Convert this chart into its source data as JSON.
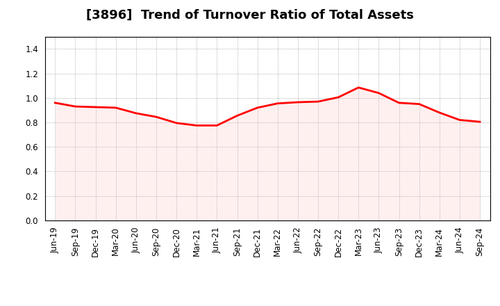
{
  "title": "[3896]  Trend of Turnover Ratio of Total Assets",
  "labels": [
    "Jun-19",
    "Sep-19",
    "Dec-19",
    "Mar-20",
    "Jun-20",
    "Sep-20",
    "Dec-20",
    "Mar-21",
    "Jun-21",
    "Sep-21",
    "Dec-21",
    "Mar-22",
    "Jun-22",
    "Sep-22",
    "Dec-22",
    "Mar-23",
    "Jun-23",
    "Sep-23",
    "Dec-23",
    "Mar-24",
    "Jun-24",
    "Sep-24"
  ],
  "values": [
    0.96,
    0.93,
    0.925,
    0.92,
    0.875,
    0.845,
    0.795,
    0.775,
    0.775,
    0.855,
    0.92,
    0.955,
    0.965,
    0.97,
    1.005,
    1.085,
    1.04,
    0.96,
    0.95,
    0.88,
    0.82,
    0.805
  ],
  "line_color": "#ff0000",
  "line_width": 2.0,
  "fill_color": "#ffb0b0",
  "fill_alpha": 0.18,
  "ylim": [
    0.0,
    1.5
  ],
  "yticks": [
    0.0,
    0.2,
    0.4,
    0.6,
    0.8,
    1.0,
    1.2,
    1.4
  ],
  "background_color": "#ffffff",
  "plot_bg_color": "#ffffff",
  "grid_color": "#999999",
  "title_fontsize": 13,
  "tick_fontsize": 8.5
}
